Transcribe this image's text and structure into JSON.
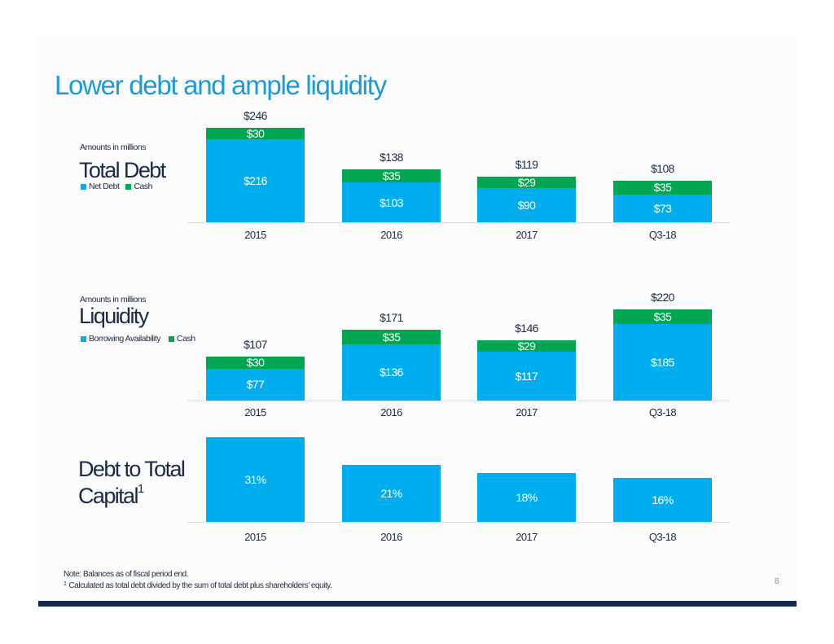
{
  "page": {
    "title": "Lower debt and ample liquidity",
    "page_number": "8",
    "note": "Note: Balances as of fiscal period end.",
    "footnote_marker": "1",
    "footnote": "Calculated as total debt divided by the sum of total debt plus shareholders’ equity.",
    "colors": {
      "title": "#1a9bd7",
      "text": "#1b2a47",
      "bottom_bar": "#13294b"
    }
  },
  "chart_data": [
    {
      "type": "bar",
      "stacked": true,
      "title": "Total Debt",
      "subtitle": "Amounts in millions",
      "unit": "$ millions",
      "categories": [
        "2015",
        "2016",
        "2017",
        "Q3-18"
      ],
      "series": [
        {
          "name": "Net Debt",
          "color": "#00aeef",
          "values": [
            216,
            103,
            90,
            73
          ],
          "labels": [
            "$216",
            "$103",
            "$90",
            "$73"
          ]
        },
        {
          "name": "Cash",
          "color": "#00a651",
          "values": [
            30,
            35,
            29,
            35
          ],
          "labels": [
            "$30",
            "$35",
            "$29",
            "$35"
          ]
        }
      ],
      "totals": {
        "values": [
          246,
          138,
          119,
          108
        ],
        "labels": [
          "$246",
          "$138",
          "$119",
          "$108"
        ]
      },
      "legend": "left",
      "grid": false
    },
    {
      "type": "bar",
      "stacked": true,
      "title": "Liquidity",
      "subtitle": "Amounts in millions",
      "unit": "$ millions",
      "categories": [
        "2015",
        "2016",
        "2017",
        "Q3-18"
      ],
      "series": [
        {
          "name": "Borrowing Availability",
          "color": "#00aeef",
          "values": [
            77,
            136,
            117,
            185
          ],
          "labels": [
            "$77",
            "$136",
            "$117",
            "$185"
          ]
        },
        {
          "name": "Cash",
          "color": "#00a651",
          "values": [
            30,
            35,
            29,
            35
          ],
          "labels": [
            "$30",
            "$35",
            "$29",
            "$35"
          ]
        }
      ],
      "totals": {
        "values": [
          107,
          171,
          146,
          220
        ],
        "labels": [
          "$107",
          "$171",
          "$146",
          "$220"
        ]
      },
      "legend": "left",
      "grid": false
    },
    {
      "type": "bar",
      "stacked": false,
      "title": "Debt to Total Capital",
      "title_line1": "Debt to Total",
      "title_line2": "Capital",
      "title_sup": "1",
      "unit": "%",
      "categories": [
        "2015",
        "2016",
        "2017",
        "Q3-18"
      ],
      "series": [
        {
          "name": "Debt to Total Capital",
          "color": "#00aeef",
          "values": [
            31,
            21,
            18,
            16
          ],
          "labels": [
            "31%",
            "21%",
            "18%",
            "16%"
          ]
        }
      ],
      "grid": false
    }
  ]
}
